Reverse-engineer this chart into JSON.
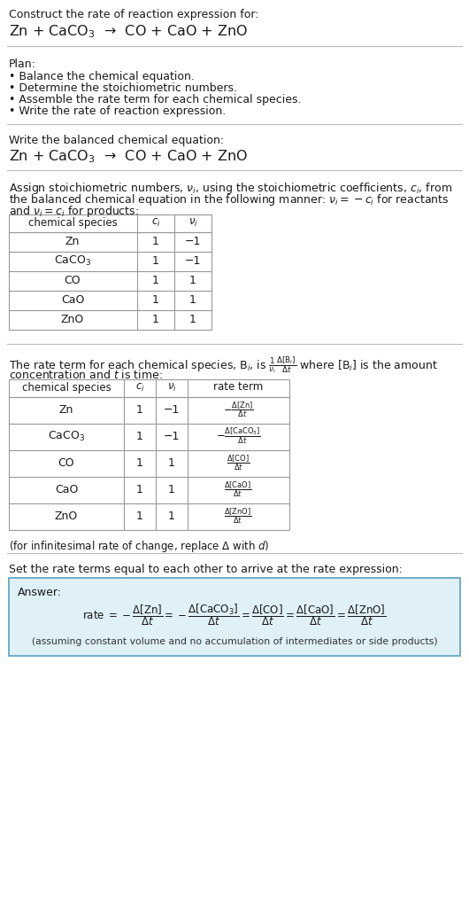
{
  "bg_color": "#ffffff",
  "text_color": "#1a1a1a",
  "title_line1": "Construct the rate of reaction expression for:",
  "title_eq": "Zn + CaCO$_3$  →  CO + CaO + ZnO",
  "plan_header": "Plan:",
  "plan_items": [
    "• Balance the chemical equation.",
    "• Determine the stoichiometric numbers.",
    "• Assemble the rate term for each chemical species.",
    "• Write the rate of reaction expression."
  ],
  "balanced_header": "Write the balanced chemical equation:",
  "balanced_eq": "Zn + CaCO$_3$  →  CO + CaO + ZnO",
  "assign_text1": "Assign stoichiometric numbers, $\\nu_i$, using the stoichiometric coefficients, $c_i$, from",
  "assign_text2": "the balanced chemical equation in the following manner: $\\nu_i = -c_i$ for reactants",
  "assign_text3": "and $\\nu_i = c_i$ for products:",
  "table1_headers": [
    "chemical species",
    "$c_i$",
    "$\\nu_i$"
  ],
  "table1_rows": [
    [
      "Zn",
      "1",
      "−1"
    ],
    [
      "CaCO$_3$",
      "1",
      "−1"
    ],
    [
      "CO",
      "1",
      "1"
    ],
    [
      "CaO",
      "1",
      "1"
    ],
    [
      "ZnO",
      "1",
      "1"
    ]
  ],
  "rate_text1": "The rate term for each chemical species, B$_i$, is $\\frac{1}{\\nu_i}\\frac{\\Delta[\\mathrm{B}_i]}{\\Delta t}$ where [B$_i$] is the amount",
  "rate_text2": "concentration and $t$ is time:",
  "table2_headers": [
    "chemical species",
    "$c_i$",
    "$\\nu_i$",
    "rate term"
  ],
  "table2_rows": [
    [
      "Zn",
      "1",
      "−1",
      "$-\\frac{\\Delta[\\mathrm{Zn}]}{\\Delta t}$"
    ],
    [
      "CaCO$_3$",
      "1",
      "−1",
      "$-\\frac{\\Delta[\\mathrm{CaCO_3}]}{\\Delta t}$"
    ],
    [
      "CO",
      "1",
      "1",
      "$\\frac{\\Delta[\\mathrm{CO}]}{\\Delta t}$"
    ],
    [
      "CaO",
      "1",
      "1",
      "$\\frac{\\Delta[\\mathrm{CaO}]}{\\Delta t}$"
    ],
    [
      "ZnO",
      "1",
      "1",
      "$\\frac{\\Delta[\\mathrm{ZnO}]}{\\Delta t}$"
    ]
  ],
  "infinitesimal_note": "(for infinitesimal rate of change, replace Δ with $d$)",
  "set_rate_text": "Set the rate terms equal to each other to arrive at the rate expression:",
  "answer_label": "Answer:",
  "answer_box_facecolor": "#dff0f7",
  "answer_box_edgecolor": "#5aa0c0",
  "assuming_note": "(assuming constant volume and no accumulation of intermediates or side products)"
}
